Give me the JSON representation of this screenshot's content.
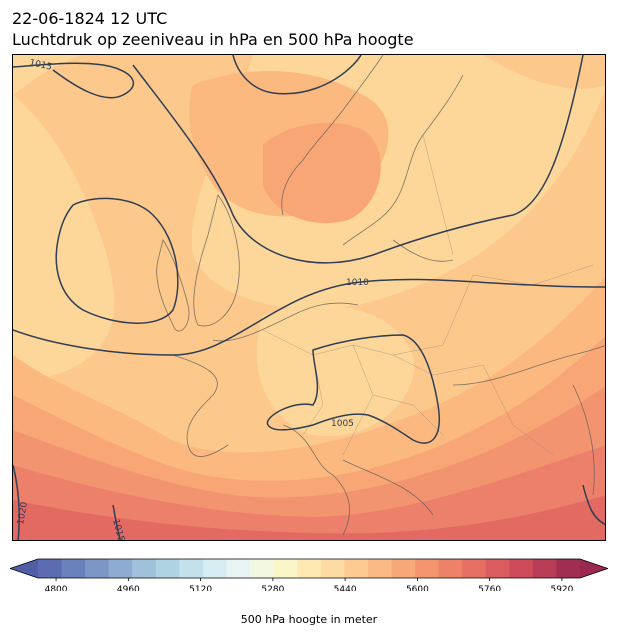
{
  "title_line1": "22-06-1824 12 UTC",
  "title_line2": "Luchtdruk op zeeniveau in hPa en 500 hPa hoogte",
  "isobars": {
    "color": "#2f3e55",
    "labels": [
      "1015",
      "1010",
      "1005",
      "1020",
      "1015"
    ]
  },
  "colorbar": {
    "label": "500 hPa hoogte in meter",
    "ticks": [
      "4800",
      "4960",
      "5120",
      "5280",
      "5440",
      "5600",
      "5760",
      "5920"
    ],
    "min": 4760,
    "max": 5960,
    "step": 40,
    "extend": "both",
    "colormap": "RdYlBu_r"
  },
  "fill_colors": {
    "5640": "#fdd69a",
    "5680": "#fcc88b",
    "5720": "#fbb97f",
    "5760": "#f8a676",
    "5800": "#f39470",
    "5840": "#ec806a",
    "5880": "#e36a63"
  }
}
